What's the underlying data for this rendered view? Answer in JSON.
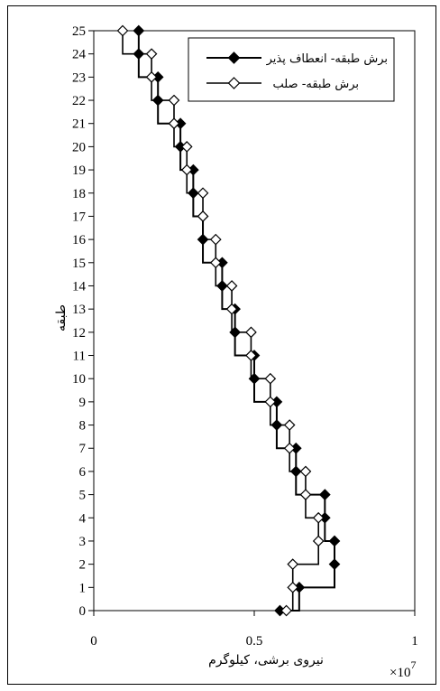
{
  "chart_data": {
    "type": "line",
    "title": "",
    "xlabel": "نیروی برشی، کیلوگرم",
    "ylabel": "طبقه",
    "x_multiplier": "×10",
    "x_multiplier_exp": "7",
    "xlim": [
      0,
      1
    ],
    "ylim": [
      0,
      25
    ],
    "x_ticks": [
      "0",
      "0.5",
      "1"
    ],
    "y_ticks": [
      "0",
      "1",
      "2",
      "3",
      "4",
      "5",
      "6",
      "7",
      "8",
      "9",
      "10",
      "11",
      "12",
      "13",
      "14",
      "15",
      "16",
      "17",
      "18",
      "19",
      "20",
      "21",
      "22",
      "23",
      "24",
      "25"
    ],
    "grid": false,
    "legend_position": "top-right",
    "series": [
      {
        "name": "برش طبقه- انعطاف پذیر",
        "marker": "diamond-filled",
        "color": "#000000",
        "values": [
          0.58,
          0.64,
          0.75,
          0.75,
          0.72,
          0.72,
          0.63,
          0.63,
          0.57,
          0.57,
          0.5,
          0.5,
          0.44,
          0.44,
          0.4,
          0.4,
          0.34,
          0.34,
          0.31,
          0.31,
          0.27,
          0.27,
          0.2,
          0.2,
          0.14,
          0.14
        ]
      },
      {
        "name": "برش طبقه- صلب",
        "marker": "diamond-open",
        "color": "#000000",
        "values": [
          0.6,
          0.62,
          0.62,
          0.7,
          0.7,
          0.66,
          0.66,
          0.61,
          0.61,
          0.55,
          0.55,
          0.49,
          0.49,
          0.43,
          0.43,
          0.38,
          0.38,
          0.34,
          0.34,
          0.29,
          0.29,
          0.25,
          0.25,
          0.18,
          0.18,
          0.09
        ]
      }
    ]
  }
}
